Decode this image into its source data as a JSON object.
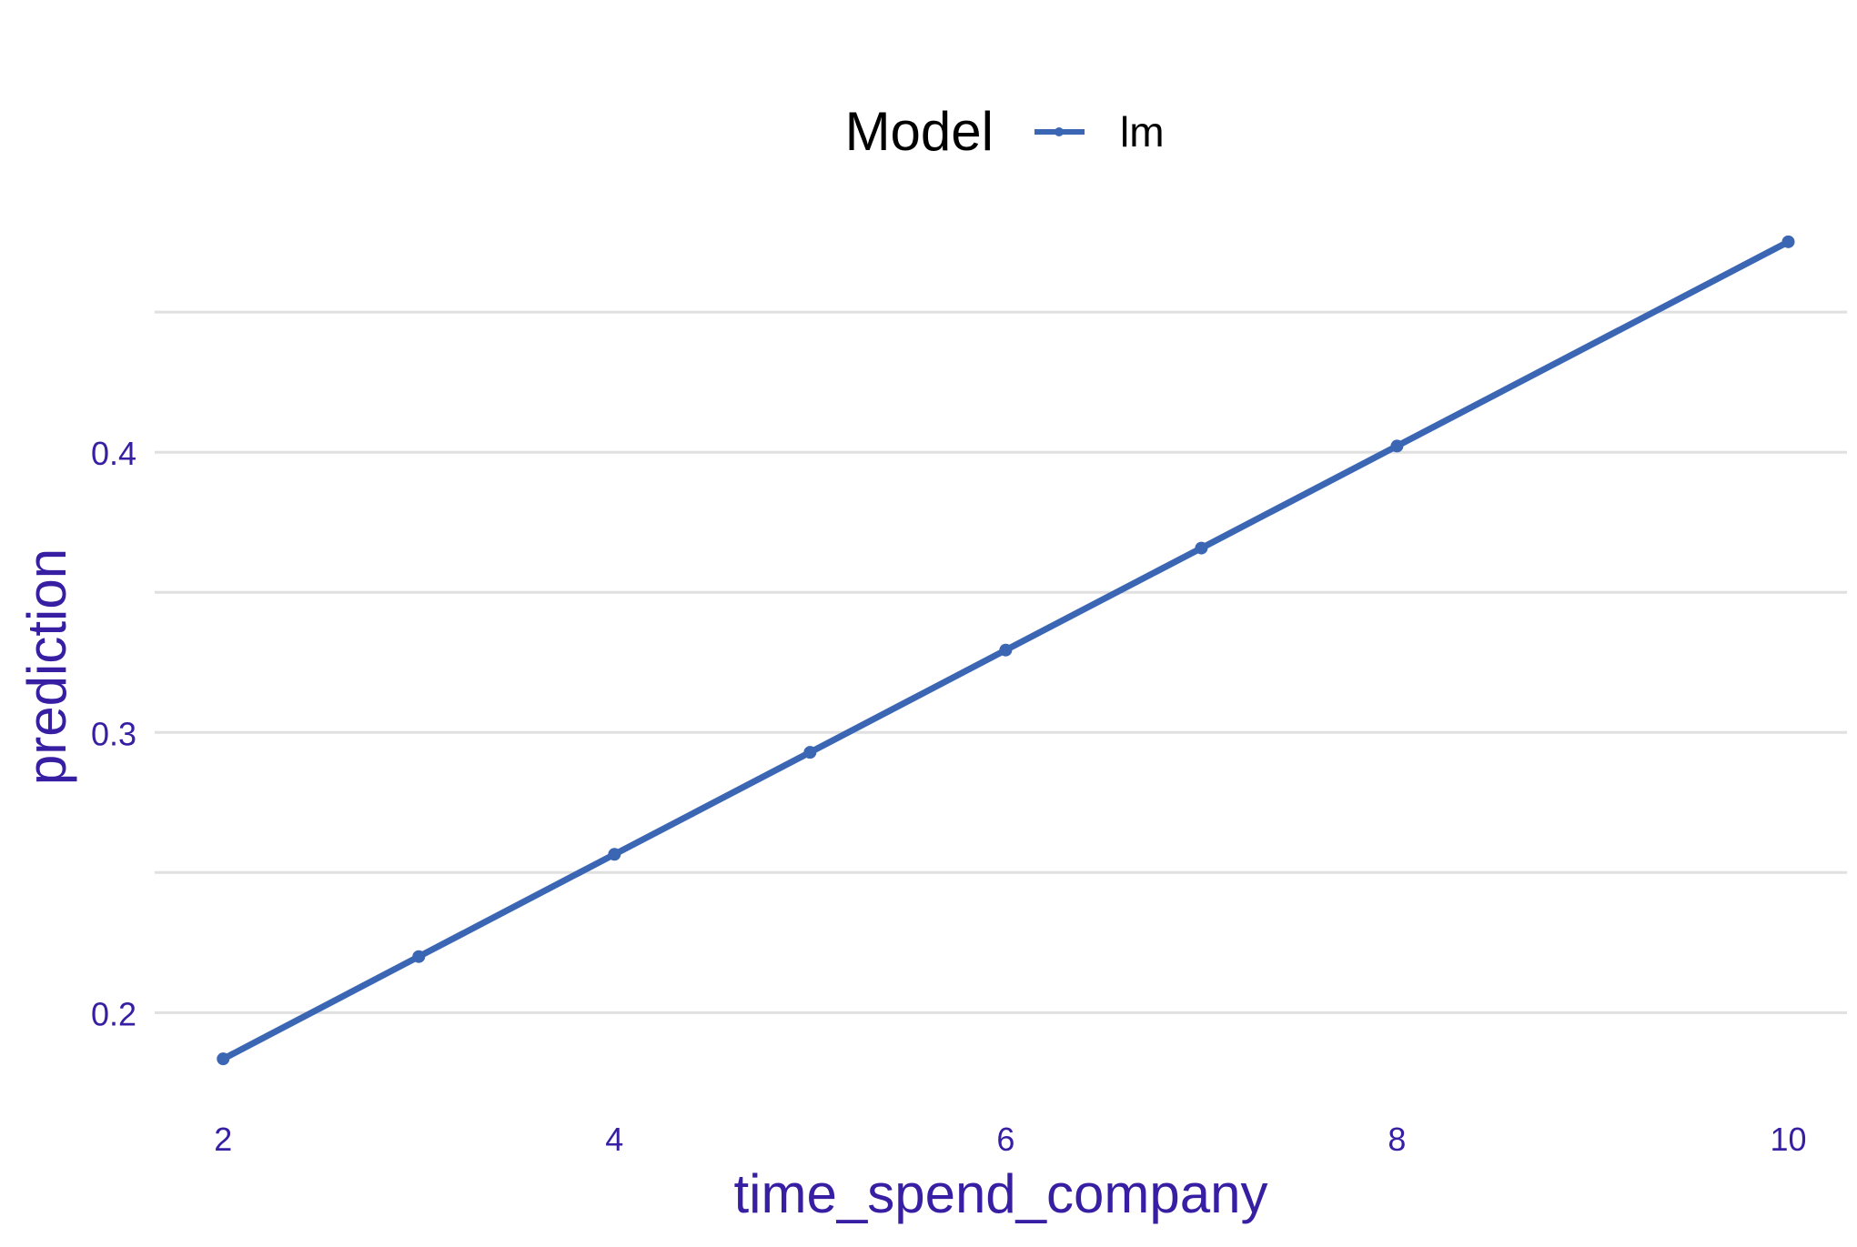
{
  "chart_data": {
    "type": "line",
    "title": "",
    "xlabel": "time_spend_company",
    "ylabel": "prediction",
    "x": [
      2,
      3,
      4,
      5,
      6,
      7,
      8,
      10
    ],
    "series": [
      {
        "name": "lm",
        "values": [
          0.1835,
          0.22,
          0.2565,
          0.2929,
          0.3294,
          0.3658,
          0.4022,
          0.4751
        ],
        "color": "#3a66b4"
      }
    ],
    "xlim": [
      1.65,
      10.3
    ],
    "ylim": [
      0.167,
      0.477
    ],
    "xticks": [
      2,
      4,
      6,
      8,
      10
    ],
    "xtick_labels": [
      "2",
      "4",
      "6",
      "8",
      "10"
    ],
    "yticks": [
      0.2,
      0.3,
      0.4
    ],
    "ytick_labels": [
      "0.2",
      "0.3",
      "0.4"
    ],
    "y_minor_gridlines": [
      0.25,
      0.35,
      0.45
    ],
    "grid": "horizontal",
    "legend": {
      "title": "Model",
      "position": "top",
      "entries": [
        "lm"
      ]
    },
    "colors": {
      "axis_text": "#371ea3",
      "grid": "#e0e0e0",
      "series": "#3a66b4"
    }
  }
}
